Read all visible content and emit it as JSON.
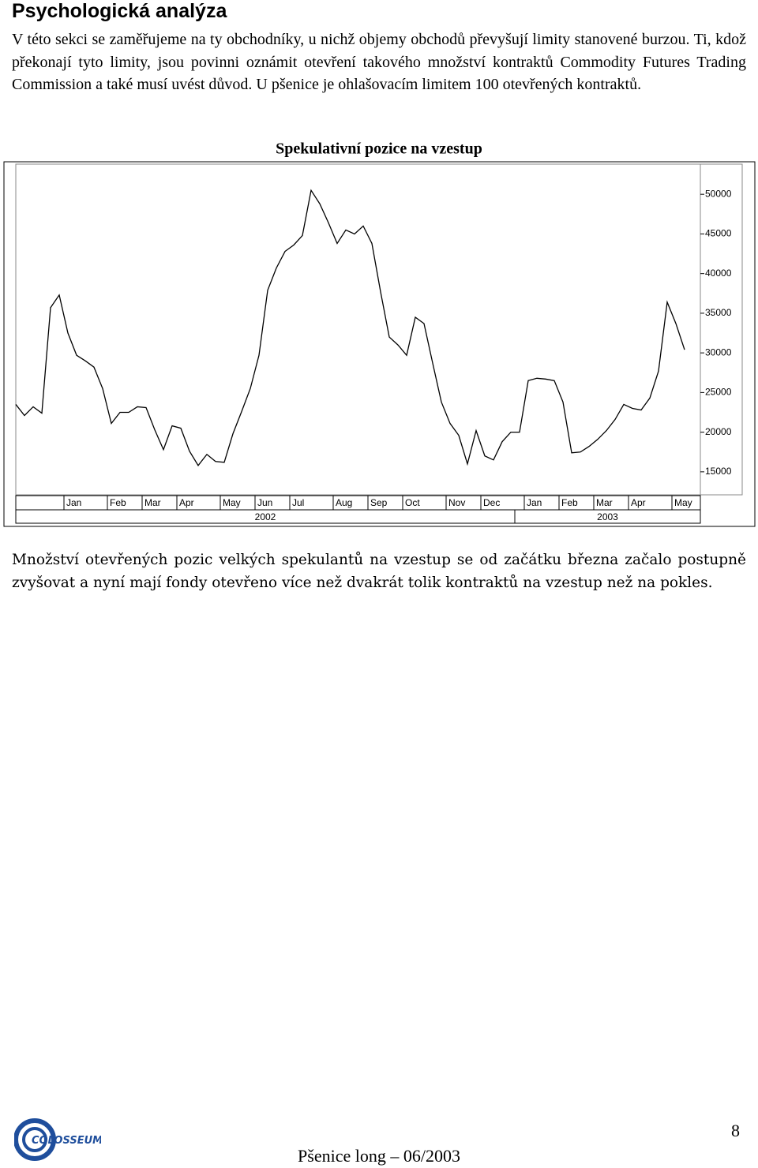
{
  "header": {
    "title": "Psychologická analýza"
  },
  "paragraphs": [
    "V této sekci se zaměřujeme na ty obchodníky, u nichž objemy obchodů převyšují limity stanovené burzou. Ti, kdož překonají tyto limity, jsou povinni oznámit otevření takového množství kontraktů Commodity Futures Trading Commission a také musí uvést důvod. U pšenice je ohlašovacím limitem 100 otevřených kontraktů.",
    "Množství otevřených pozic velkých spekulantů na vzestup se od začátku března začalo postupně zvyšovat a nyní mají fondy otevřeno více než dvakrát tolik kontraktů na vzestup než na pokles."
  ],
  "chart_data": {
    "type": "line",
    "title": "Spekulativní pozice na vzestup",
    "color": "#000000",
    "categories": [
      null,
      null,
      null,
      "Jan",
      null,
      null,
      null,
      null,
      "Feb",
      null,
      null,
      null,
      "Mar",
      null,
      null,
      null,
      "Apr",
      null,
      null,
      null,
      null,
      "May",
      null,
      null,
      null,
      "Jun",
      null,
      null,
      null,
      "Jul",
      null,
      null,
      null,
      null,
      "Aug",
      null,
      null,
      null,
      "Sep",
      null,
      null,
      null,
      "Oct",
      null,
      null,
      null,
      null,
      "Nov",
      null,
      null,
      null,
      "Dec",
      null,
      null,
      null,
      null,
      "Jan",
      null,
      null,
      null,
      "Feb",
      null,
      null,
      null,
      "Mar",
      null,
      null,
      null,
      "Apr",
      null,
      null,
      null,
      null,
      "May",
      null,
      null,
      null,
      null
    ],
    "values": [
      23500,
      22100,
      23200,
      22400,
      35700,
      37300,
      32500,
      29700,
      29000,
      28200,
      25500,
      21100,
      22500,
      22500,
      23200,
      23100,
      20300,
      17800,
      20800,
      20500,
      17600,
      15800,
      17200,
      16300,
      16200,
      19800,
      22600,
      25500,
      29700,
      37900,
      40700,
      42800,
      43600,
      44800,
      50500,
      48800,
      46400,
      43800,
      45500,
      45000,
      46000,
      43800,
      37700,
      32000,
      31000,
      29700,
      34500,
      33700,
      28700,
      23800,
      21100,
      19600,
      16000,
      20200,
      17000,
      16500,
      18800,
      20000,
      20000,
      26500,
      26800,
      26700,
      26500,
      23800,
      17400,
      17500,
      18200,
      19100,
      20200,
      21600,
      23500,
      23000,
      22800,
      24300,
      27700,
      36400,
      33700,
      30400
    ],
    "ylim": [
      12100,
      53800
    ],
    "yticks": [
      15000,
      20000,
      25000,
      30000,
      35000,
      40000,
      45000,
      50000
    ],
    "years": [
      "2002",
      "2003"
    ]
  },
  "footer": {
    "text": "Pšenice long – 06/2003",
    "page": "8",
    "logo": "COLOSSEUM"
  }
}
